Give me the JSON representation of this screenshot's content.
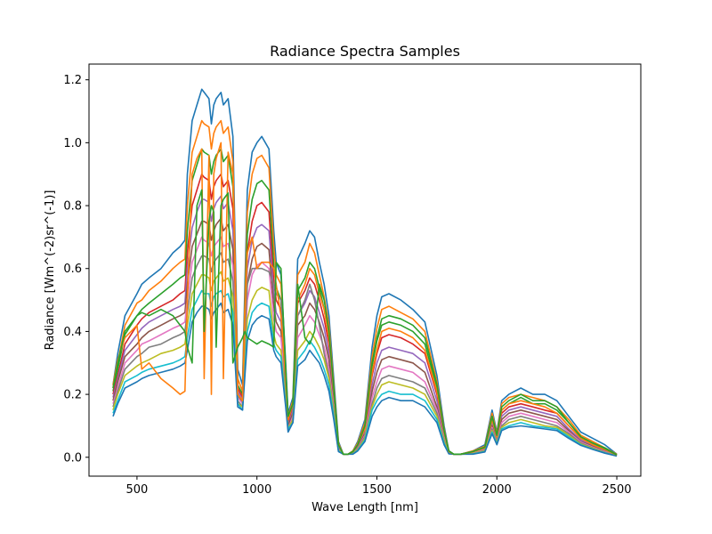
{
  "chart_data": {
    "type": "line",
    "title": "Radiance Spectra Samples",
    "xlabel": "Wave Length [nm]",
    "ylabel": "Radiance [Wm^(-2)sr^(-1)]",
    "xlim": [
      300,
      2600
    ],
    "ylim": [
      -0.06,
      1.25
    ],
    "xticks": [
      500,
      1000,
      1500,
      2000,
      2500
    ],
    "xtick_labels": [
      "500",
      "1000",
      "1500",
      "2000",
      "2500"
    ],
    "yticks": [
      0.0,
      0.2,
      0.4,
      0.6,
      0.8,
      1.0,
      1.2
    ],
    "ytick_labels": [
      "0.0",
      "0.2",
      "0.4",
      "0.6",
      "0.8",
      "1.0",
      "1.2"
    ],
    "grid": false,
    "legend": "none",
    "colors": [
      "#1f77b4",
      "#ff7f0e",
      "#2ca02c",
      "#d62728",
      "#9467bd",
      "#8c564b",
      "#e377c2",
      "#7f7f7f",
      "#bcbd22",
      "#17becf"
    ],
    "x": [
      400,
      420,
      450,
      500,
      520,
      550,
      600,
      650,
      680,
      700,
      710,
      730,
      750,
      770,
      780,
      800,
      810,
      820,
      830,
      850,
      860,
      880,
      900,
      920,
      940,
      950,
      960,
      980,
      1000,
      1020,
      1050,
      1070,
      1080,
      1100,
      1120,
      1130,
      1150,
      1170,
      1200,
      1220,
      1240,
      1260,
      1280,
      1300,
      1320,
      1340,
      1360,
      1380,
      1400,
      1420,
      1450,
      1480,
      1500,
      1520,
      1550,
      1600,
      1650,
      1700,
      1750,
      1780,
      1800,
      1820,
      1850,
      1900,
      1950,
      1980,
      2000,
      2020,
      2050,
      2100,
      2150,
      2200,
      2250,
      2300,
      2350,
      2400,
      2450,
      2500
    ],
    "series": [
      {
        "values": [
          0.23,
          0.33,
          0.45,
          0.52,
          0.55,
          0.57,
          0.6,
          0.65,
          0.67,
          0.69,
          0.9,
          1.07,
          1.12,
          1.17,
          1.16,
          1.14,
          1.06,
          1.12,
          1.14,
          1.16,
          1.12,
          1.14,
          1.02,
          0.28,
          0.23,
          0.55,
          0.85,
          0.97,
          1.0,
          1.02,
          0.98,
          0.72,
          0.62,
          0.58,
          0.3,
          0.14,
          0.19,
          0.63,
          0.68,
          0.72,
          0.7,
          0.62,
          0.55,
          0.45,
          0.25,
          0.05,
          0.01,
          0.01,
          0.02,
          0.05,
          0.12,
          0.35,
          0.45,
          0.51,
          0.52,
          0.5,
          0.47,
          0.43,
          0.26,
          0.1,
          0.02,
          0.01,
          0.01,
          0.02,
          0.04,
          0.15,
          0.08,
          0.18,
          0.2,
          0.22,
          0.2,
          0.2,
          0.18,
          0.13,
          0.08,
          0.06,
          0.04,
          0.01
        ]
      },
      {
        "values": [
          0.22,
          0.3,
          0.42,
          0.49,
          0.5,
          0.53,
          0.56,
          0.6,
          0.62,
          0.63,
          0.8,
          0.97,
          1.02,
          1.07,
          1.06,
          1.05,
          0.98,
          1.03,
          1.05,
          1.07,
          1.03,
          1.05,
          0.94,
          0.25,
          0.21,
          0.5,
          0.78,
          0.9,
          0.95,
          0.96,
          0.92,
          0.67,
          0.58,
          0.55,
          0.28,
          0.13,
          0.18,
          0.58,
          0.62,
          0.68,
          0.65,
          0.58,
          0.51,
          0.42,
          0.23,
          0.045,
          0.01,
          0.01,
          0.02,
          0.045,
          0.11,
          0.32,
          0.41,
          0.47,
          0.48,
          0.46,
          0.44,
          0.4,
          0.24,
          0.09,
          0.02,
          0.01,
          0.01,
          0.02,
          0.035,
          0.14,
          0.075,
          0.17,
          0.19,
          0.2,
          0.19,
          0.18,
          0.16,
          0.12,
          0.07,
          0.05,
          0.03,
          0.01
        ]
      },
      {
        "values": [
          0.21,
          0.28,
          0.39,
          0.45,
          0.47,
          0.49,
          0.52,
          0.55,
          0.57,
          0.58,
          0.72,
          0.88,
          0.93,
          0.98,
          0.97,
          0.96,
          0.9,
          0.94,
          0.96,
          0.98,
          0.94,
          0.96,
          0.86,
          0.23,
          0.2,
          0.46,
          0.71,
          0.82,
          0.87,
          0.88,
          0.85,
          0.61,
          0.54,
          0.5,
          0.26,
          0.12,
          0.17,
          0.53,
          0.57,
          0.62,
          0.6,
          0.54,
          0.47,
          0.39,
          0.21,
          0.04,
          0.01,
          0.01,
          0.018,
          0.04,
          0.1,
          0.29,
          0.37,
          0.42,
          0.43,
          0.42,
          0.4,
          0.36,
          0.22,
          0.08,
          0.02,
          0.01,
          0.01,
          0.018,
          0.032,
          0.13,
          0.07,
          0.15,
          0.17,
          0.19,
          0.17,
          0.17,
          0.15,
          0.11,
          0.065,
          0.045,
          0.03,
          0.008
        ]
      },
      {
        "values": [
          0.2,
          0.26,
          0.36,
          0.42,
          0.44,
          0.46,
          0.48,
          0.5,
          0.52,
          0.53,
          0.65,
          0.8,
          0.85,
          0.9,
          0.89,
          0.88,
          0.82,
          0.86,
          0.88,
          0.9,
          0.86,
          0.88,
          0.79,
          0.22,
          0.19,
          0.42,
          0.65,
          0.75,
          0.8,
          0.81,
          0.78,
          0.56,
          0.5,
          0.47,
          0.24,
          0.11,
          0.16,
          0.49,
          0.53,
          0.57,
          0.55,
          0.5,
          0.44,
          0.36,
          0.2,
          0.035,
          0.01,
          0.01,
          0.016,
          0.035,
          0.09,
          0.26,
          0.33,
          0.38,
          0.39,
          0.38,
          0.36,
          0.33,
          0.2,
          0.075,
          0.018,
          0.01,
          0.01,
          0.016,
          0.03,
          0.12,
          0.065,
          0.14,
          0.16,
          0.17,
          0.16,
          0.15,
          0.14,
          0.1,
          0.06,
          0.04,
          0.025,
          0.007
        ]
      },
      {
        "values": [
          0.19,
          0.25,
          0.34,
          0.39,
          0.41,
          0.43,
          0.45,
          0.47,
          0.48,
          0.49,
          0.6,
          0.73,
          0.78,
          0.82,
          0.82,
          0.81,
          0.75,
          0.79,
          0.81,
          0.83,
          0.79,
          0.81,
          0.72,
          0.21,
          0.18,
          0.39,
          0.6,
          0.69,
          0.73,
          0.74,
          0.72,
          0.52,
          0.46,
          0.43,
          0.22,
          0.1,
          0.15,
          0.45,
          0.49,
          0.53,
          0.51,
          0.46,
          0.41,
          0.33,
          0.18,
          0.03,
          0.01,
          0.01,
          0.015,
          0.032,
          0.08,
          0.23,
          0.3,
          0.34,
          0.35,
          0.34,
          0.33,
          0.3,
          0.18,
          0.07,
          0.016,
          0.01,
          0.01,
          0.015,
          0.028,
          0.11,
          0.06,
          0.13,
          0.15,
          0.16,
          0.15,
          0.14,
          0.13,
          0.09,
          0.055,
          0.038,
          0.022,
          0.006
        ]
      },
      {
        "values": [
          0.18,
          0.24,
          0.32,
          0.36,
          0.38,
          0.4,
          0.42,
          0.44,
          0.45,
          0.46,
          0.55,
          0.67,
          0.71,
          0.75,
          0.75,
          0.74,
          0.69,
          0.72,
          0.74,
          0.76,
          0.72,
          0.74,
          0.66,
          0.2,
          0.17,
          0.36,
          0.55,
          0.63,
          0.67,
          0.68,
          0.66,
          0.48,
          0.43,
          0.4,
          0.21,
          0.1,
          0.14,
          0.42,
          0.45,
          0.49,
          0.47,
          0.43,
          0.38,
          0.31,
          0.17,
          0.028,
          0.01,
          0.01,
          0.014,
          0.03,
          0.075,
          0.21,
          0.27,
          0.31,
          0.32,
          0.31,
          0.3,
          0.27,
          0.16,
          0.065,
          0.015,
          0.01,
          0.01,
          0.014,
          0.026,
          0.1,
          0.055,
          0.12,
          0.14,
          0.15,
          0.14,
          0.13,
          0.12,
          0.085,
          0.05,
          0.035,
          0.02,
          0.006
        ]
      },
      {
        "values": [
          0.17,
          0.22,
          0.3,
          0.34,
          0.36,
          0.37,
          0.39,
          0.41,
          0.42,
          0.43,
          0.5,
          0.62,
          0.66,
          0.7,
          0.69,
          0.68,
          0.64,
          0.67,
          0.68,
          0.7,
          0.67,
          0.68,
          0.61,
          0.19,
          0.17,
          0.34,
          0.5,
          0.58,
          0.61,
          0.62,
          0.6,
          0.44,
          0.4,
          0.38,
          0.2,
          0.09,
          0.13,
          0.38,
          0.42,
          0.45,
          0.43,
          0.39,
          0.35,
          0.28,
          0.16,
          0.026,
          0.01,
          0.01,
          0.013,
          0.028,
          0.07,
          0.19,
          0.24,
          0.28,
          0.29,
          0.28,
          0.27,
          0.24,
          0.15,
          0.06,
          0.014,
          0.01,
          0.01,
          0.013,
          0.024,
          0.095,
          0.05,
          0.11,
          0.13,
          0.14,
          0.13,
          0.12,
          0.11,
          0.08,
          0.048,
          0.032,
          0.018,
          0.005
        ]
      },
      {
        "values": [
          0.16,
          0.21,
          0.28,
          0.32,
          0.33,
          0.35,
          0.36,
          0.38,
          0.39,
          0.4,
          0.46,
          0.57,
          0.61,
          0.64,
          0.64,
          0.63,
          0.59,
          0.62,
          0.63,
          0.65,
          0.62,
          0.63,
          0.56,
          0.18,
          0.16,
          0.39,
          0.55,
          0.6,
          0.6,
          0.6,
          0.59,
          0.55,
          0.52,
          0.5,
          0.2,
          0.09,
          0.12,
          0.45,
          0.5,
          0.55,
          0.5,
          0.42,
          0.33,
          0.26,
          0.15,
          0.024,
          0.01,
          0.01,
          0.012,
          0.026,
          0.065,
          0.17,
          0.22,
          0.25,
          0.26,
          0.25,
          0.24,
          0.22,
          0.14,
          0.055,
          0.013,
          0.01,
          0.01,
          0.012,
          0.022,
          0.09,
          0.048,
          0.1,
          0.12,
          0.13,
          0.12,
          0.11,
          0.1,
          0.075,
          0.045,
          0.03,
          0.016,
          0.005
        ]
      },
      {
        "values": [
          0.15,
          0.2,
          0.26,
          0.29,
          0.3,
          0.31,
          0.33,
          0.34,
          0.35,
          0.36,
          0.42,
          0.52,
          0.55,
          0.58,
          0.58,
          0.57,
          0.53,
          0.56,
          0.57,
          0.59,
          0.56,
          0.57,
          0.51,
          0.17,
          0.16,
          0.3,
          0.44,
          0.5,
          0.53,
          0.54,
          0.53,
          0.39,
          0.36,
          0.34,
          0.18,
          0.09,
          0.12,
          0.34,
          0.37,
          0.4,
          0.38,
          0.35,
          0.31,
          0.25,
          0.14,
          0.022,
          0.01,
          0.01,
          0.012,
          0.024,
          0.06,
          0.16,
          0.2,
          0.23,
          0.24,
          0.23,
          0.22,
          0.2,
          0.13,
          0.05,
          0.012,
          0.01,
          0.01,
          0.012,
          0.02,
          0.085,
          0.045,
          0.095,
          0.11,
          0.12,
          0.11,
          0.1,
          0.095,
          0.07,
          0.042,
          0.028,
          0.015,
          0.004
        ]
      },
      {
        "values": [
          0.14,
          0.18,
          0.24,
          0.26,
          0.27,
          0.28,
          0.29,
          0.3,
          0.31,
          0.32,
          0.38,
          0.47,
          0.5,
          0.53,
          0.52,
          0.52,
          0.48,
          0.51,
          0.52,
          0.53,
          0.51,
          0.52,
          0.46,
          0.17,
          0.15,
          0.28,
          0.4,
          0.46,
          0.48,
          0.49,
          0.48,
          0.36,
          0.34,
          0.32,
          0.17,
          0.09,
          0.11,
          0.31,
          0.34,
          0.37,
          0.35,
          0.32,
          0.28,
          0.23,
          0.13,
          0.02,
          0.01,
          0.01,
          0.011,
          0.022,
          0.055,
          0.15,
          0.18,
          0.2,
          0.21,
          0.2,
          0.2,
          0.18,
          0.12,
          0.045,
          0.012,
          0.01,
          0.01,
          0.011,
          0.018,
          0.08,
          0.042,
          0.09,
          0.1,
          0.11,
          0.1,
          0.095,
          0.09,
          0.065,
          0.04,
          0.026,
          0.014,
          0.004
        ]
      },
      {
        "values": [
          0.13,
          0.17,
          0.22,
          0.24,
          0.25,
          0.26,
          0.27,
          0.28,
          0.29,
          0.3,
          0.34,
          0.43,
          0.46,
          0.48,
          0.48,
          0.47,
          0.44,
          0.46,
          0.47,
          0.49,
          0.46,
          0.47,
          0.42,
          0.16,
          0.15,
          0.26,
          0.37,
          0.42,
          0.44,
          0.45,
          0.44,
          0.34,
          0.32,
          0.3,
          0.16,
          0.08,
          0.11,
          0.29,
          0.31,
          0.34,
          0.32,
          0.3,
          0.26,
          0.21,
          0.12,
          0.018,
          0.01,
          0.01,
          0.01,
          0.02,
          0.05,
          0.13,
          0.16,
          0.18,
          0.19,
          0.18,
          0.18,
          0.16,
          0.11,
          0.04,
          0.011,
          0.01,
          0.01,
          0.01,
          0.017,
          0.075,
          0.04,
          0.085,
          0.095,
          0.1,
          0.095,
          0.09,
          0.085,
          0.06,
          0.038,
          0.025,
          0.013,
          0.004
        ]
      },
      {
        "values": [
          0.23,
          0.31,
          0.38,
          0.42,
          0.28,
          0.3,
          0.25,
          0.22,
          0.2,
          0.21,
          0.5,
          0.9,
          0.95,
          0.98,
          0.25,
          0.96,
          0.2,
          0.9,
          0.95,
          1.0,
          0.25,
          0.97,
          0.9,
          0.2,
          0.18,
          0.45,
          0.65,
          0.7,
          0.6,
          0.62,
          0.62,
          0.6,
          0.55,
          0.45,
          0.25,
          0.12,
          0.17,
          0.5,
          0.55,
          0.6,
          0.58,
          0.52,
          0.47,
          0.38,
          0.21,
          0.04,
          0.01,
          0.01,
          0.017,
          0.04,
          0.09,
          0.27,
          0.34,
          0.4,
          0.41,
          0.4,
          0.38,
          0.34,
          0.21,
          0.08,
          0.018,
          0.01,
          0.01,
          0.017,
          0.03,
          0.12,
          0.065,
          0.15,
          0.17,
          0.18,
          0.17,
          0.16,
          0.14,
          0.1,
          0.06,
          0.04,
          0.025,
          0.007
        ]
      },
      {
        "values": [
          0.22,
          0.3,
          0.4,
          0.45,
          0.46,
          0.45,
          0.47,
          0.45,
          0.42,
          0.4,
          0.35,
          0.3,
          0.8,
          0.85,
          0.4,
          0.75,
          0.8,
          0.78,
          0.35,
          0.8,
          0.82,
          0.84,
          0.3,
          0.35,
          0.38,
          0.4,
          0.38,
          0.37,
          0.36,
          0.37,
          0.36,
          0.35,
          0.62,
          0.6,
          0.28,
          0.13,
          0.17,
          0.55,
          0.38,
          0.36,
          0.4,
          0.55,
          0.5,
          0.4,
          0.22,
          0.04,
          0.01,
          0.01,
          0.018,
          0.04,
          0.1,
          0.3,
          0.38,
          0.44,
          0.45,
          0.44,
          0.42,
          0.38,
          0.23,
          0.085,
          0.02,
          0.01,
          0.01,
          0.018,
          0.032,
          0.13,
          0.07,
          0.16,
          0.18,
          0.2,
          0.18,
          0.18,
          0.16,
          0.11,
          0.065,
          0.045,
          0.028,
          0.008
        ]
      }
    ]
  }
}
